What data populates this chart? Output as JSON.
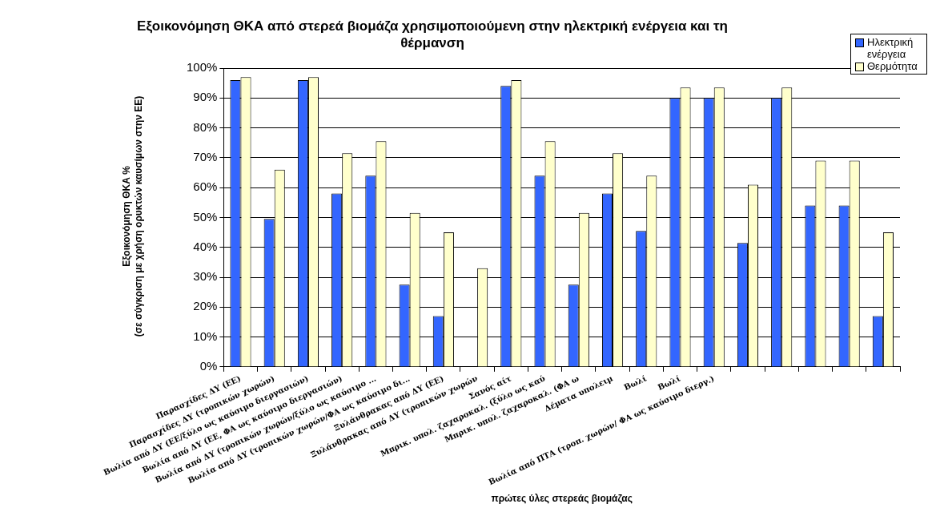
{
  "chart_data": {
    "type": "bar",
    "title": "Εξοικονόμηση ΘΚΑ από στερεά βιομάζα χρησιμοποιούμενη στην ηλεκτρική ενέργεια και τη θέρμανση",
    "xlabel": "πρώτες ύλες στερεάς βιομάζας",
    "ylabel": "Εξοικονόμηση ΘΚΑ %\n(σε σύγκριση με χρήση ορυκτών καυσίμων στην ΕΕ)",
    "categories": [
      "Παρασχίδες ΔΥ (ΕΕ)",
      "Παρασχίδες ΔΥ (τροπικών χωρών)",
      "Βωλία από ΔΥ (ΕΕ/ξύλο ως καύσιμο διεργασιών)",
      "Βωλία από ΔΥ (ΕΕ, ΦΑ ως καύσιμο διεργασιών)",
      "Βωλία από ΔΥ (τροπικών χωρών/ξύλο ως καύσιμο ...",
      "Βωλία από ΔΥ (τροπικών χωρών/ΦΑ ως καύσιμο δι...",
      "Ξυλάνθρακας από ΔΥ (ΕΕ)",
      "Ξυλάνθρακας από ΔΥ (τροπικών χωρών",
      "Σανός αίτ",
      "Μπρικ. υπολ. ζαχαροκαλ. (ξύλο ως καύ",
      "Μπρικ. υπολ. ζαχαροκαλ. (ΦΑ ω",
      "Δέματα υπολειμ",
      "Βωλί",
      "Βωλί",
      "Βωλία από ΠΤΑ (τροπ. χωρών/ ΦΑ ως καύσιμο διεργ.)",
      null,
      null,
      null,
      null,
      null
    ],
    "series": [
      {
        "name": "Ηλεκτρική ενέργεια",
        "color": "#3366ff",
        "values": [
          96,
          49.5,
          96,
          58,
          64,
          27.5,
          17,
          null,
          94,
          64,
          27.5,
          58,
          45.5,
          90,
          90,
          41.5,
          90,
          54,
          54,
          17
        ]
      },
      {
        "name": "Θερμότητα",
        "color": "#ffffcc",
        "values": [
          97,
          66,
          97,
          71.5,
          75.5,
          51.5,
          45,
          33,
          96,
          75.5,
          51.5,
          71.5,
          64,
          93.5,
          93.5,
          61,
          93.5,
          69,
          69,
          45
        ]
      }
    ],
    "ylim": [
      0,
      100
    ],
    "yticks": [
      {
        "value": 0,
        "label": "0%"
      },
      {
        "value": 10,
        "label": "10%"
      },
      {
        "value": 20,
        "label": "20%"
      },
      {
        "value": 30,
        "label": "30%"
      },
      {
        "value": 40,
        "label": "40%"
      },
      {
        "value": 50,
        "label": "50%"
      },
      {
        "value": 60,
        "label": "60%"
      },
      {
        "value": 70,
        "label": "70%"
      },
      {
        "value": 80,
        "label": "80%"
      },
      {
        "value": 90,
        "label": "90%"
      },
      {
        "value": 100,
        "label": "100%"
      }
    ],
    "grid": "y",
    "legend": "top right"
  }
}
